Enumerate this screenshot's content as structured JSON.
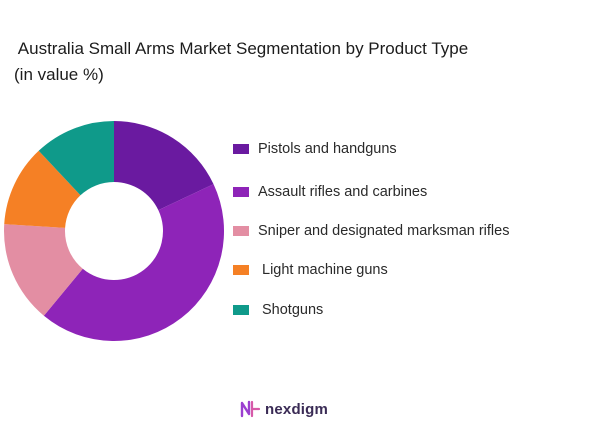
{
  "chart_data": {
    "type": "pie",
    "style": "donut",
    "title": " Australia Small Arms Market Segmentation by Product Type\n(in value %)",
    "categories": [
      "Pistols and handguns",
      "Assault rifles and carbines",
      "Sniper and designated marksman rifles",
      "Light machine guns",
      "Shotguns"
    ],
    "values": [
      18,
      43,
      15,
      12,
      12
    ],
    "colors": [
      "#6a1aa0",
      "#8e24b8",
      "#e38ea3",
      "#f58025",
      "#0f9a8a"
    ],
    "legend_position": "right"
  },
  "brand": {
    "name": "nexdigm"
  }
}
